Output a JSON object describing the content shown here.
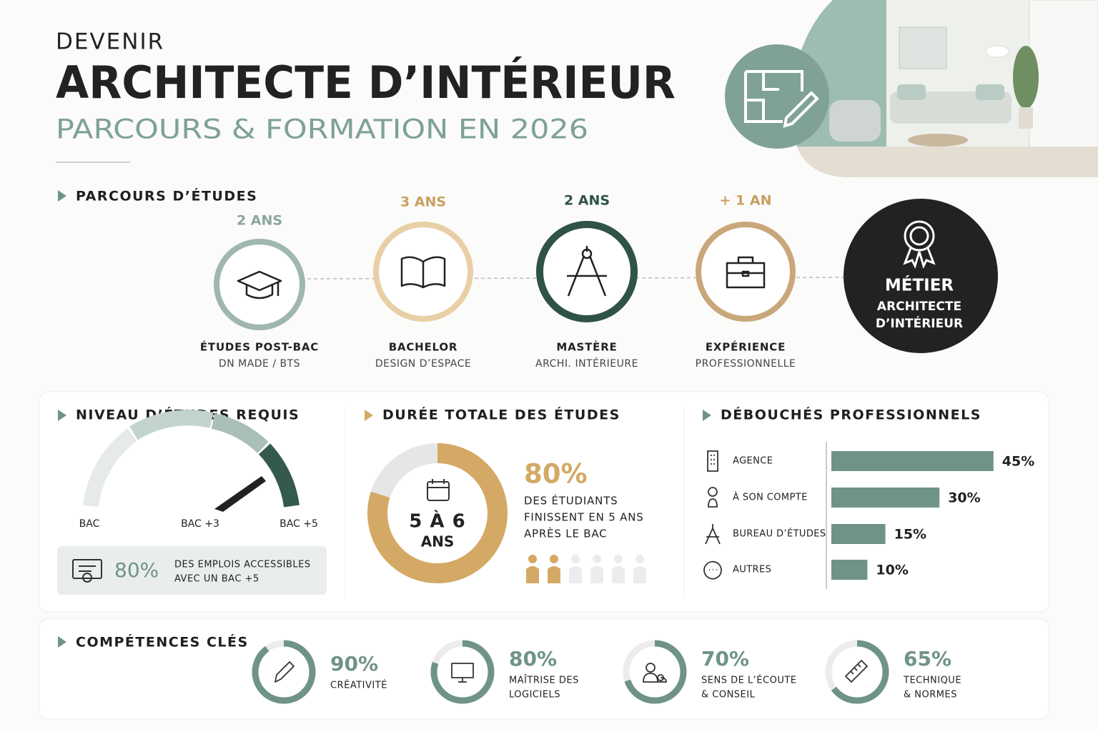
{
  "header": {
    "kicker": "DEVENIR",
    "title": "ARCHITECTE D’INTÉRIEUR",
    "subtitle": "PARCOURS & FORMATION EN 2026"
  },
  "pathway": {
    "title": "PARCOURS D’ÉTUDES",
    "steps": [
      {
        "duration": "2 ANS",
        "name": "ÉTUDES POST-BAC",
        "detail": "DN MADE / BTS"
      },
      {
        "duration": "3 ANS",
        "name": "BACHELOR",
        "detail": "DESIGN D’ESPACE"
      },
      {
        "duration": "2 ANS",
        "name": "MASTÈRE",
        "detail": "ARCHI. INTÉRIEURE"
      },
      {
        "duration": "+ 1 AN",
        "name": "EXPÉRIENCE",
        "detail": "PROFESSIONNELLE"
      }
    ],
    "goal": {
      "label": "MÉTIER",
      "detail": [
        "ARCHITECTE",
        "D’INTÉRIEUR"
      ]
    }
  },
  "level": {
    "title": "NIVEAU D’ÉTUDES REQUIS",
    "gauge_labels": [
      "BAC",
      "BAC +3",
      "BAC +5"
    ],
    "callout": {
      "value": "80%",
      "text": [
        "DES EMPLOIS ACCESSIBLES",
        "AVEC UN BAC +5"
      ]
    }
  },
  "duration": {
    "title": "DURÉE TOTALE DES ÉTUDES",
    "center": [
      "5 À 6",
      "ANS"
    ],
    "value": 80,
    "value_label": "80%",
    "text": [
      "DES ÉTUDIANTS",
      "FINISSENT EN 5 ANS",
      "APRÈS LE BAC"
    ]
  },
  "outlets": {
    "title": "DÉBOUCHÉS PROFESSIONNELS",
    "categories": [
      "AGENCE",
      "À SON COMPTE",
      "BUREAU D’ÉTUDES",
      "AUTRES"
    ],
    "values": [
      45,
      30,
      15,
      10
    ],
    "value_labels": [
      "45%",
      "30%",
      "15%",
      "10%"
    ],
    "color": "#6f9387"
  },
  "skills": {
    "title": "COMPÉTENCES CLÉS",
    "values": [
      90,
      80,
      70,
      65
    ],
    "value_labels": [
      "90%",
      "80%",
      "70%",
      "65%"
    ],
    "names": [
      [
        "CRÉATIVITÉ"
      ],
      [
        "MAÎTRISE DES",
        "LOGICIELS"
      ],
      [
        "SENS DE L’ÉCOUTE",
        "& CONSEIL"
      ],
      [
        "TECHNIQUE",
        "& NORMES"
      ]
    ],
    "color": "#6f9387"
  }
}
